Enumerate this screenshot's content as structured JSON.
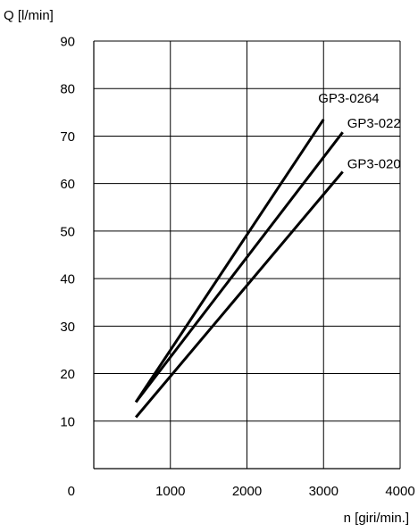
{
  "chart_data": {
    "type": "line",
    "title": "",
    "xlabel": "n [giri/min.]",
    "ylabel": "Q [l/min]",
    "xlim": [
      0,
      4000
    ],
    "ylim": [
      0,
      90
    ],
    "x_ticks": [
      0,
      1000,
      2000,
      3000,
      4000
    ],
    "y_ticks": [
      10,
      20,
      30,
      40,
      50,
      60,
      70,
      80,
      90
    ],
    "y_origin_label": "0",
    "grid": true,
    "series": [
      {
        "name": "GP3-0264",
        "x": [
          550,
          3000
        ],
        "y": [
          14,
          73.5
        ]
      },
      {
        "name": "GP3-022",
        "x": [
          550,
          3250
        ],
        "y": [
          14,
          70.8
        ]
      },
      {
        "name": "GP3-020",
        "x": [
          550,
          3250
        ],
        "y": [
          10.8,
          62.5
        ]
      }
    ]
  }
}
